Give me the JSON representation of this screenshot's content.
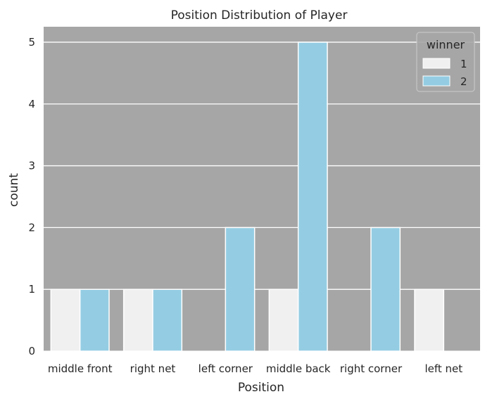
{
  "chart_data": {
    "type": "bar",
    "title": "Position Distribution of Player",
    "xlabel": "Position",
    "ylabel": "count",
    "categories": [
      "middle front",
      "right net",
      "left corner",
      "middle back",
      "right corner",
      "left net"
    ],
    "series": [
      {
        "name": "1",
        "values": [
          1,
          1,
          0,
          1,
          0,
          1
        ],
        "color": "#f0f0f0"
      },
      {
        "name": "2",
        "values": [
          1,
          1,
          2,
          5,
          2,
          0
        ],
        "color": "#94cde3"
      }
    ],
    "ylim": [
      0,
      5.25
    ],
    "yticks": [
      0,
      1,
      2,
      3,
      4,
      5
    ],
    "grid": true,
    "legend": {
      "title": "winner",
      "placement": "top-right"
    },
    "colors": {
      "background": "#a6a6a6",
      "grid": "#ffffff",
      "bar_edge": "#ffffff"
    }
  }
}
